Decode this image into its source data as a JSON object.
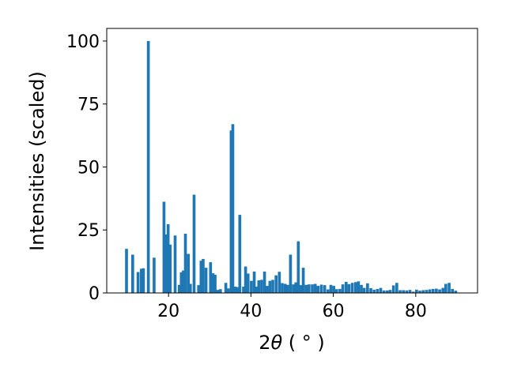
{
  "chart_data": {
    "type": "bar",
    "xlabel_main": "2",
    "xlabel_theta": "θ",
    "xlabel_unit": " ( ° )",
    "ylabel": "Intensities (scaled)",
    "xlim": [
      5,
      95
    ],
    "ylim": [
      0,
      105
    ],
    "xticks": [
      20,
      40,
      60,
      80
    ],
    "yticks": [
      0,
      25,
      50,
      75,
      100
    ],
    "bar_color": "#1f77b4",
    "bar_width": 0.7,
    "grid": false,
    "x": [
      9.8,
      11.3,
      12.6,
      13.4,
      13.9,
      15.1,
      16.5,
      18.9,
      19.3,
      19.9,
      20.4,
      21.6,
      22.6,
      23.1,
      23.6,
      24.1,
      24.8,
      25.3,
      26.2,
      27.3,
      27.9,
      28.4,
      29.1,
      30.2,
      30.8,
      31.3,
      31.9,
      32.6,
      33.9,
      34.5,
      35.2,
      35.6,
      36.2,
      36.8,
      37.3,
      38.2,
      38.7,
      39.3,
      40.1,
      40.8,
      41.4,
      41.9,
      42.6,
      43.3,
      43.9,
      44.6,
      45.3,
      46.1,
      46.9,
      47.6,
      48.3,
      48.9,
      49.6,
      50.3,
      50.9,
      51.5,
      52.1,
      52.7,
      53.4,
      54.1,
      54.9,
      55.6,
      56.3,
      57.1,
      57.9,
      58.7,
      59.4,
      60.1,
      60.8,
      61.6,
      62.3,
      63.1,
      63.8,
      64.6,
      65.4,
      66.1,
      66.8,
      67.5,
      68.3,
      69.1,
      69.9,
      70.7,
      71.5,
      72.3,
      73.1,
      73.8,
      74.6,
      75.4,
      76.2,
      77.0,
      77.8,
      78.6,
      79.4,
      80.2,
      81.0,
      81.8,
      82.6,
      83.4,
      84.2,
      85.0,
      85.8,
      86.6,
      87.3,
      88.1,
      88.9,
      89.7
    ],
    "values": [
      17.5,
      15.2,
      8.3,
      9.6,
      9.8,
      100,
      14,
      36.2,
      23.2,
      27.3,
      19.2,
      22.8,
      3.2,
      8.2,
      8.9,
      23.5,
      15.5,
      3.6,
      39,
      3.1,
      12.8,
      13.5,
      10,
      12.2,
      7.8,
      7.2,
      1.2,
      1.5,
      4,
      1.8,
      64.5,
      67,
      2.5,
      2.3,
      31,
      2.5,
      10.5,
      7.7,
      4.8,
      8.5,
      2.5,
      5,
      5.2,
      8.5,
      2.8,
      4.8,
      5.2,
      7,
      8.4,
      3.9,
      3.6,
      3.2,
      15.2,
      3.4,
      4.2,
      20.5,
      3.1,
      10,
      3.2,
      3.4,
      3.4,
      3.6,
      2.8,
      3.3,
      3.1,
      1.4,
      3.2,
      2.8,
      1.5,
      1.6,
      3.4,
      4.4,
      3.5,
      4,
      4.3,
      4.6,
      3.2,
      2,
      3.8,
      1.9,
      1.3,
      1.6,
      2,
      1,
      1,
      1.2,
      3,
      4,
      1.1,
      1.1,
      1,
      1.2,
      0.5,
      1.3,
      0.9,
      1.1,
      1.2,
      1.4,
      1.6,
      1.7,
      1.4,
      2,
      3.6,
      4,
      1.6,
      0.9
    ]
  }
}
